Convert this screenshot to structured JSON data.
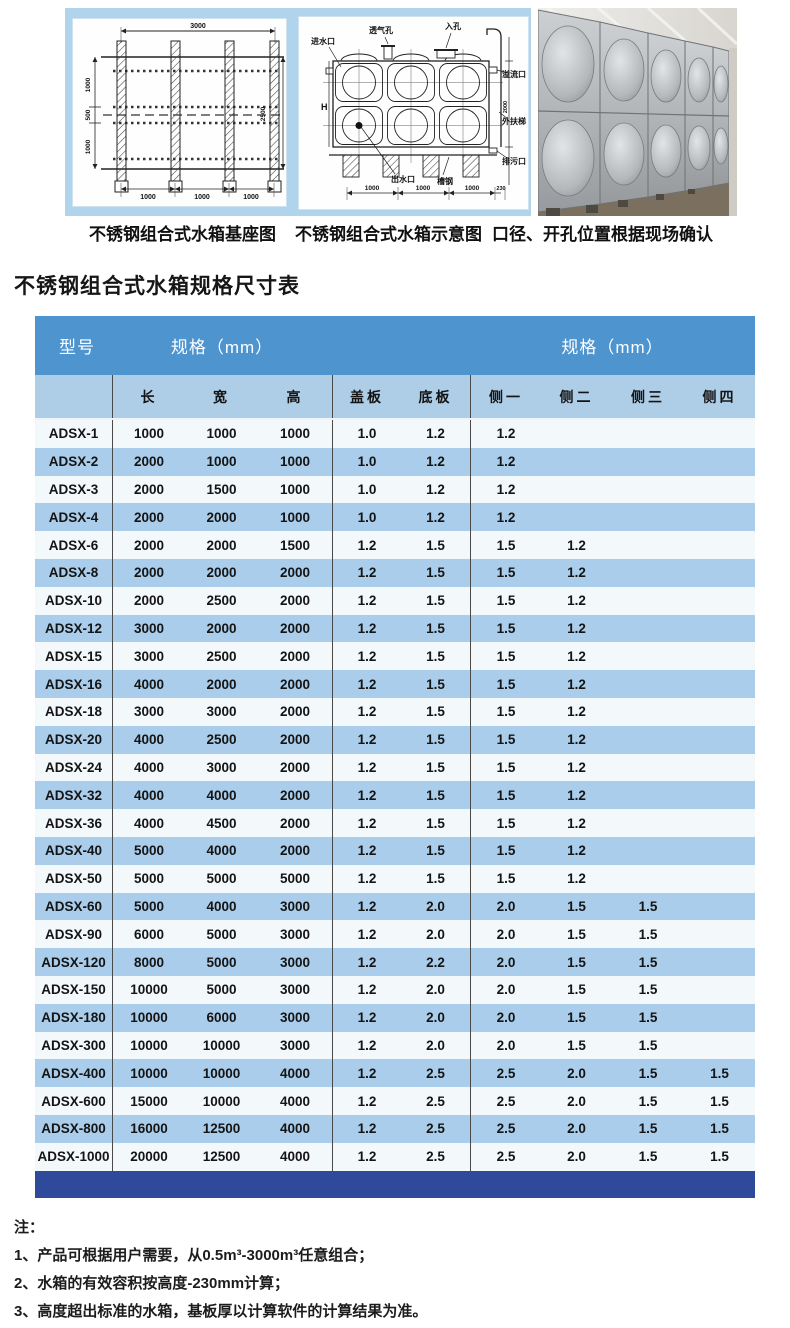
{
  "title": "不锈钢组合式水箱规格尺寸表",
  "diagrams": {
    "base": {
      "caption": "不锈钢组合式水箱基座图",
      "dim_top": "3000",
      "dims_bottom": [
        "1000",
        "1000",
        "1000"
      ],
      "dims_left": [
        "1000",
        "500",
        "1000"
      ],
      "dim_right": "2500"
    },
    "schematic": {
      "caption": "不锈钢组合式水箱示意图",
      "label_inlet": "进水口",
      "label_vent": "透气孔",
      "label_manhole": "入孔",
      "label_overflow": "溢流口",
      "label_ladder": "外扶梯",
      "label_drain": "排污口",
      "label_outlet": "出水口",
      "label_channel": "槽钢",
      "label_height": "H",
      "dim_right": "2000",
      "dims_bottom": [
        "1000",
        "1000",
        "1000",
        "230"
      ]
    },
    "photo_caption": "口径、开孔位置根据现场确认"
  },
  "table": {
    "header": {
      "model": "型号",
      "group1": "规格（mm）",
      "group2": "规格（mm）",
      "sub": [
        "长",
        "宽",
        "高",
        "盖板",
        "底板",
        "侧一",
        "侧二",
        "侧三",
        "侧四"
      ]
    },
    "rows": [
      [
        "ADSX-1",
        "1000",
        "1000",
        "1000",
        "1.0",
        "1.2",
        "1.2",
        "",
        "",
        ""
      ],
      [
        "ADSX-2",
        "2000",
        "1000",
        "1000",
        "1.0",
        "1.2",
        "1.2",
        "",
        "",
        ""
      ],
      [
        "ADSX-3",
        "2000",
        "1500",
        "1000",
        "1.0",
        "1.2",
        "1.2",
        "",
        "",
        ""
      ],
      [
        "ADSX-4",
        "2000",
        "2000",
        "1000",
        "1.0",
        "1.2",
        "1.2",
        "",
        "",
        ""
      ],
      [
        "ADSX-6",
        "2000",
        "2000",
        "1500",
        "1.2",
        "1.5",
        "1.5",
        "1.2",
        "",
        ""
      ],
      [
        "ADSX-8",
        "2000",
        "2000",
        "2000",
        "1.2",
        "1.5",
        "1.5",
        "1.2",
        "",
        ""
      ],
      [
        "ADSX-10",
        "2000",
        "2500",
        "2000",
        "1.2",
        "1.5",
        "1.5",
        "1.2",
        "",
        ""
      ],
      [
        "ADSX-12",
        "3000",
        "2000",
        "2000",
        "1.2",
        "1.5",
        "1.5",
        "1.2",
        "",
        ""
      ],
      [
        "ADSX-15",
        "3000",
        "2500",
        "2000",
        "1.2",
        "1.5",
        "1.5",
        "1.2",
        "",
        ""
      ],
      [
        "ADSX-16",
        "4000",
        "2000",
        "2000",
        "1.2",
        "1.5",
        "1.5",
        "1.2",
        "",
        ""
      ],
      [
        "ADSX-18",
        "3000",
        "3000",
        "2000",
        "1.2",
        "1.5",
        "1.5",
        "1.2",
        "",
        ""
      ],
      [
        "ADSX-20",
        "4000",
        "2500",
        "2000",
        "1.2",
        "1.5",
        "1.5",
        "1.2",
        "",
        ""
      ],
      [
        "ADSX-24",
        "4000",
        "3000",
        "2000",
        "1.2",
        "1.5",
        "1.5",
        "1.2",
        "",
        ""
      ],
      [
        "ADSX-32",
        "4000",
        "4000",
        "2000",
        "1.2",
        "1.5",
        "1.5",
        "1.2",
        "",
        ""
      ],
      [
        "ADSX-36",
        "4000",
        "4500",
        "2000",
        "1.2",
        "1.5",
        "1.5",
        "1.2",
        "",
        ""
      ],
      [
        "ADSX-40",
        "5000",
        "4000",
        "2000",
        "1.2",
        "1.5",
        "1.5",
        "1.2",
        "",
        ""
      ],
      [
        "ADSX-50",
        "5000",
        "5000",
        "5000",
        "1.2",
        "1.5",
        "1.5",
        "1.2",
        "",
        ""
      ],
      [
        "ADSX-60",
        "5000",
        "4000",
        "3000",
        "1.2",
        "2.0",
        "2.0",
        "1.5",
        "1.5",
        ""
      ],
      [
        "ADSX-90",
        "6000",
        "5000",
        "3000",
        "1.2",
        "2.0",
        "2.0",
        "1.5",
        "1.5",
        ""
      ],
      [
        "ADSX-120",
        "8000",
        "5000",
        "3000",
        "1.2",
        "2.2",
        "2.0",
        "1.5",
        "1.5",
        ""
      ],
      [
        "ADSX-150",
        "10000",
        "5000",
        "3000",
        "1.2",
        "2.0",
        "2.0",
        "1.5",
        "1.5",
        ""
      ],
      [
        "ADSX-180",
        "10000",
        "6000",
        "3000",
        "1.2",
        "2.0",
        "2.0",
        "1.5",
        "1.5",
        ""
      ],
      [
        "ADSX-300",
        "10000",
        "10000",
        "3000",
        "1.2",
        "2.0",
        "2.0",
        "1.5",
        "1.5",
        ""
      ],
      [
        "ADSX-400",
        "10000",
        "10000",
        "4000",
        "1.2",
        "2.5",
        "2.5",
        "2.0",
        "1.5",
        "1.5"
      ],
      [
        "ADSX-600",
        "15000",
        "10000",
        "4000",
        "1.2",
        "2.5",
        "2.5",
        "2.0",
        "1.5",
        "1.5"
      ],
      [
        "ADSX-800",
        "16000",
        "12500",
        "4000",
        "1.2",
        "2.5",
        "2.5",
        "2.0",
        "1.5",
        "1.5"
      ],
      [
        "ADSX-1000",
        "20000",
        "12500",
        "4000",
        "1.2",
        "2.5",
        "2.5",
        "2.0",
        "1.5",
        "1.5"
      ]
    ]
  },
  "notes": {
    "label": "注：",
    "items": [
      "1、产品可根据用户需要，从0.5m³-3000m³任意组合；",
      "2、水箱的有效容积按高度-230mm计算；",
      "3、高度超出标准的水箱，基板厚以计算软件的计算结果为准。"
    ]
  },
  "colors": {
    "header_blue": "#4e94cf",
    "subheader_blue": "#aecde7",
    "row_blue": "#a9cdea",
    "row_white": "#f3f8fb",
    "footer_navy": "#2f4a9b",
    "banner_blue": "#b0d4ec"
  }
}
